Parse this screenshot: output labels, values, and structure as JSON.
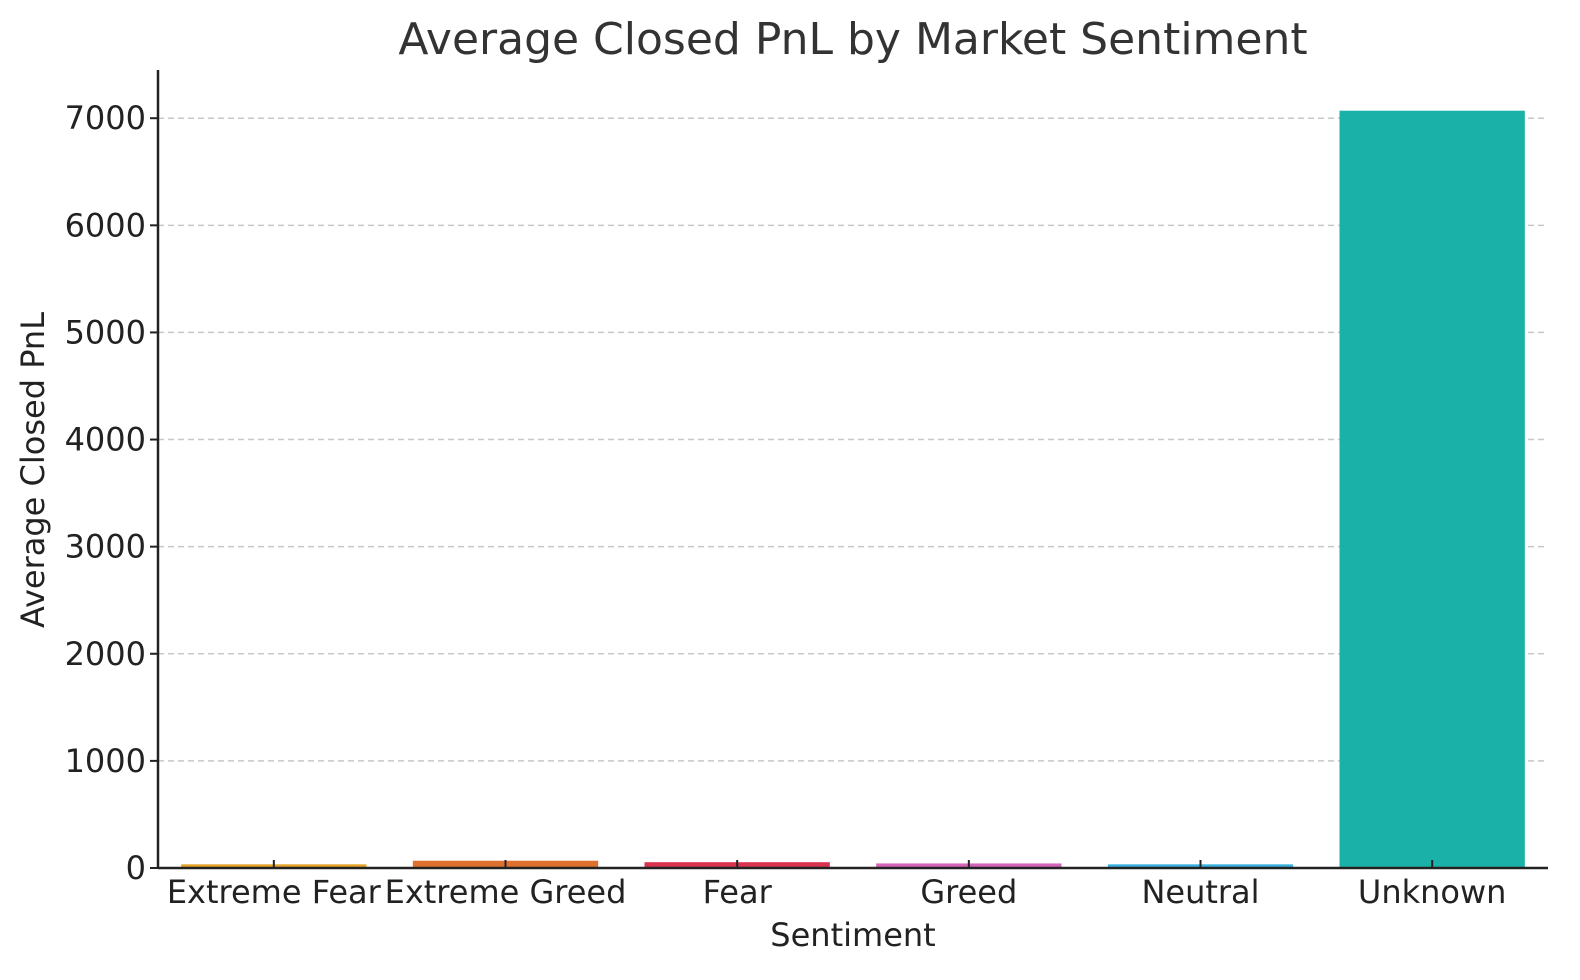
{
  "chart_data": {
    "type": "bar",
    "title": "Average Closed PnL by Market Sentiment",
    "xlabel": "Sentiment",
    "ylabel": "Average Closed PnL",
    "categories": [
      "Extreme Fear",
      "Extreme Greed",
      "Fear",
      "Greed",
      "Neutral",
      "Unknown"
    ],
    "values": [
      34.5,
      67.9,
      54.3,
      42.7,
      34.3,
      7070
    ],
    "colors": [
      "#e6a52a",
      "#e07030",
      "#d9344f",
      "#d465b8",
      "#3ab2de",
      "#1ab2a8"
    ],
    "ylim": [
      0,
      7450
    ],
    "yticks": [
      0,
      1000,
      2000,
      3000,
      4000,
      5000,
      6000,
      7000
    ],
    "grid": "y-dashed",
    "legend": "none"
  }
}
